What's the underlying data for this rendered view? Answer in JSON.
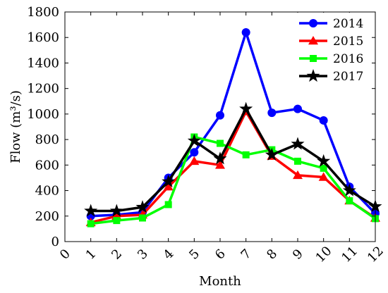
{
  "chart_data": {
    "type": "line",
    "xlabel": "Month",
    "ylabel": "Flow (m³/s)",
    "xlim": [
      0,
      12
    ],
    "ylim": [
      0,
      1800
    ],
    "x_ticks": [
      "0",
      "1",
      "2",
      "3",
      "4",
      "5",
      "6",
      "7",
      "8",
      "9",
      "10",
      "11",
      "12"
    ],
    "y_ticks": [
      "0",
      "200",
      "400",
      "600",
      "800",
      "1000",
      "1200",
      "1400",
      "1600",
      "1800"
    ],
    "x": [
      1,
      2,
      3,
      4,
      5,
      6,
      7,
      8,
      9,
      10,
      11,
      12
    ],
    "grid": false,
    "legend_position": "top-right",
    "series": [
      {
        "name": "2014",
        "color": "#0000ff",
        "marker": "circle",
        "values": [
          200,
          210,
          230,
          500,
          700,
          990,
          1640,
          1010,
          1040,
          950,
          430,
          220
        ]
      },
      {
        "name": "2015",
        "color": "#ff0000",
        "marker": "triangle",
        "values": [
          150,
          200,
          210,
          430,
          630,
          600,
          1020,
          670,
          520,
          505,
          320,
          185
        ]
      },
      {
        "name": "2016",
        "color": "#00ff00",
        "marker": "square",
        "values": [
          140,
          165,
          185,
          290,
          820,
          770,
          680,
          720,
          630,
          575,
          320,
          180
        ]
      },
      {
        "name": "2017",
        "color": "#000000",
        "marker": "star",
        "values": [
          240,
          240,
          270,
          470,
          790,
          650,
          1040,
          680,
          765,
          630,
          400,
          275
        ]
      }
    ]
  }
}
